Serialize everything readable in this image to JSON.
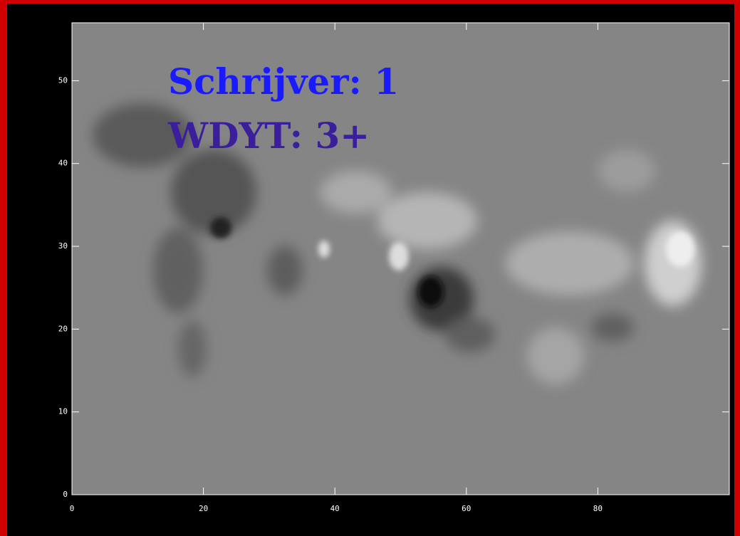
{
  "chart_data": {
    "type": "image",
    "annotations": [
      "Schrijver: 1",
      "WDYT: 3+"
    ],
    "xlim": [
      0,
      100
    ],
    "ylim": [
      0,
      57
    ],
    "xticks": [
      0,
      20,
      40,
      60,
      80
    ],
    "yticks": [
      0,
      10,
      20,
      30,
      40,
      50
    ]
  }
}
